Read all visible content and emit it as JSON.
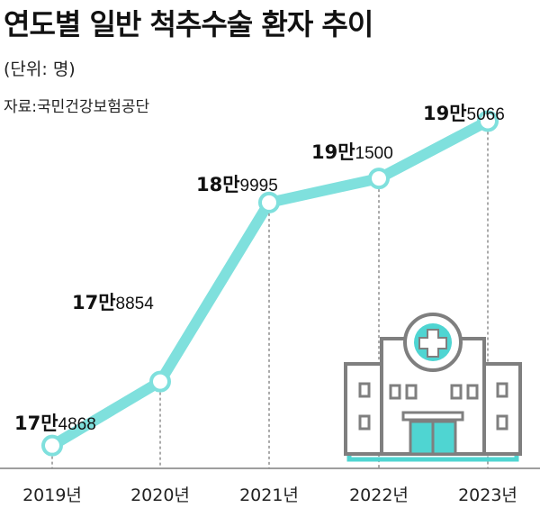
{
  "title": "연도별 일반 척추수술 환자 추이",
  "unit": "(단위: 명)",
  "source": "자료:국민건강보험공단",
  "colors": {
    "line": "#7fe0dd",
    "marker_fill": "#ffffff",
    "building": "#7f7f7f",
    "accent": "#4fd5d2",
    "baseline": "#7f7f7f"
  },
  "icons": [
    "hospital-icon"
  ],
  "chart_data": {
    "type": "line",
    "title": "연도별 일반 척추수술 환자 추이",
    "categories": [
      "2019년",
      "2020년",
      "2021년",
      "2022년",
      "2023년"
    ],
    "values": [
      174868,
      178854,
      189995,
      191500,
      195066
    ],
    "labels": [
      {
        "big": "17만",
        "small": "4868"
      },
      {
        "big": "17만",
        "small": "8854"
      },
      {
        "big": "18만",
        "small": "9995"
      },
      {
        "big": "19만",
        "small": "1500"
      },
      {
        "big": "19만",
        "small": "5066"
      }
    ],
    "ylim": [
      173000,
      197000
    ],
    "xlabel": "",
    "ylabel": "",
    "grid": false,
    "legend": "none"
  }
}
